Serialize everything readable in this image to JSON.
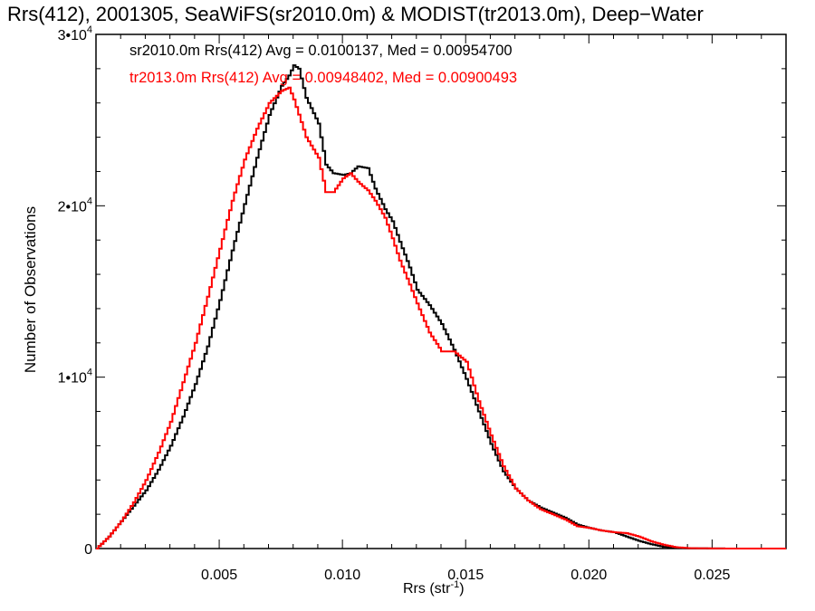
{
  "chart_data": {
    "type": "line",
    "title": "Rrs(412), 2001305, SeaWiFS(sr2010.0m) & MODIST(tr2013.0m), Deep−Water",
    "xlabel_main": "Rrs (str",
    "xlabel_sup": "-1",
    "xlabel_tail": ")",
    "ylabel": "Number of Observations",
    "xlim": [
      0.0,
      0.028
    ],
    "ylim": [
      0,
      30000
    ],
    "x_ticks": [
      {
        "value": 0.005,
        "label": "0.005"
      },
      {
        "value": 0.01,
        "label": "0.010"
      },
      {
        "value": 0.015,
        "label": "0.015"
      },
      {
        "value": 0.02,
        "label": "0.020"
      },
      {
        "value": 0.025,
        "label": "0.025"
      }
    ],
    "y_ticks": [
      {
        "value": 0,
        "base": "0",
        "exp": ""
      },
      {
        "value": 10000,
        "base": "1•10",
        "exp": "4"
      },
      {
        "value": 20000,
        "base": "2•10",
        "exp": "4"
      },
      {
        "value": 30000,
        "base": "3•10",
        "exp": "4"
      }
    ],
    "grid": false,
    "legend_placement": "top-left",
    "series": [
      {
        "name": "sr2010.0m Rrs(412)",
        "legend_text": "sr2010.0m Rrs(412) Avg = 0.0100137, Med = 0.00954700",
        "avg": 0.0100137,
        "median": 0.009547,
        "color": "#000000",
        "points": [
          [
            0.0,
            0
          ],
          [
            0.0005,
            700
          ],
          [
            0.001,
            1600
          ],
          [
            0.0015,
            2500
          ],
          [
            0.002,
            3400
          ],
          [
            0.0025,
            4600
          ],
          [
            0.003,
            6000
          ],
          [
            0.0035,
            7700
          ],
          [
            0.004,
            9600
          ],
          [
            0.0045,
            11800
          ],
          [
            0.005,
            14500
          ],
          [
            0.0055,
            17400
          ],
          [
            0.006,
            20100
          ],
          [
            0.0065,
            22800
          ],
          [
            0.007,
            25300
          ],
          [
            0.0075,
            27000
          ],
          [
            0.0078,
            27600
          ],
          [
            0.008,
            28200
          ],
          [
            0.0082,
            28000
          ],
          [
            0.0085,
            26300
          ],
          [
            0.009,
            24800
          ],
          [
            0.0093,
            22400
          ],
          [
            0.0096,
            21900
          ],
          [
            0.01,
            21800
          ],
          [
            0.0103,
            21900
          ],
          [
            0.0106,
            22300
          ],
          [
            0.011,
            22200
          ],
          [
            0.0113,
            21000
          ],
          [
            0.0117,
            19800
          ],
          [
            0.012,
            19100
          ],
          [
            0.0123,
            17900
          ],
          [
            0.0127,
            16400
          ],
          [
            0.013,
            15100
          ],
          [
            0.0135,
            14200
          ],
          [
            0.014,
            13100
          ],
          [
            0.0145,
            11600
          ],
          [
            0.015,
            9900
          ],
          [
            0.0155,
            8000
          ],
          [
            0.016,
            6100
          ],
          [
            0.0165,
            4500
          ],
          [
            0.017,
            3500
          ],
          [
            0.0175,
            2800
          ],
          [
            0.018,
            2400
          ],
          [
            0.019,
            1800
          ],
          [
            0.0195,
            1400
          ],
          [
            0.02,
            1200
          ],
          [
            0.0205,
            1050
          ],
          [
            0.021,
            950
          ],
          [
            0.0215,
            700
          ],
          [
            0.022,
            450
          ],
          [
            0.0225,
            250
          ],
          [
            0.023,
            100
          ],
          [
            0.0235,
            40
          ],
          [
            0.024,
            15
          ],
          [
            0.025,
            5
          ],
          [
            0.026,
            0
          ],
          [
            0.028,
            0
          ]
        ]
      },
      {
        "name": "tr2013.0m Rrs(412)",
        "legend_text": "tr2013.0m Rrs(412) Avg = 0.00948402, Med = 0.00900493",
        "avg": 0.00948402,
        "median": 0.00900493,
        "color": "#ff0000",
        "points": [
          [
            0.0,
            0
          ],
          [
            0.0005,
            700
          ],
          [
            0.001,
            1600
          ],
          [
            0.0015,
            2700
          ],
          [
            0.002,
            4000
          ],
          [
            0.0025,
            5600
          ],
          [
            0.003,
            7400
          ],
          [
            0.0035,
            9700
          ],
          [
            0.004,
            12000
          ],
          [
            0.0045,
            14700
          ],
          [
            0.005,
            17500
          ],
          [
            0.0055,
            20300
          ],
          [
            0.006,
            22700
          ],
          [
            0.0065,
            24500
          ],
          [
            0.007,
            26000
          ],
          [
            0.0075,
            26700
          ],
          [
            0.0078,
            26900
          ],
          [
            0.008,
            26200
          ],
          [
            0.0085,
            24000
          ],
          [
            0.009,
            22800
          ],
          [
            0.0093,
            20800
          ],
          [
            0.0096,
            20800
          ],
          [
            0.01,
            21600
          ],
          [
            0.0103,
            21900
          ],
          [
            0.0106,
            21400
          ],
          [
            0.011,
            20900
          ],
          [
            0.0113,
            20300
          ],
          [
            0.0117,
            19300
          ],
          [
            0.012,
            18100
          ],
          [
            0.0123,
            16800
          ],
          [
            0.0127,
            15400
          ],
          [
            0.013,
            14300
          ],
          [
            0.0135,
            12600
          ],
          [
            0.014,
            11500
          ],
          [
            0.0145,
            11500
          ],
          [
            0.015,
            10900
          ],
          [
            0.0155,
            8600
          ],
          [
            0.016,
            6600
          ],
          [
            0.0165,
            4800
          ],
          [
            0.017,
            3500
          ],
          [
            0.0175,
            2800
          ],
          [
            0.018,
            2300
          ],
          [
            0.019,
            1700
          ],
          [
            0.0195,
            1300
          ],
          [
            0.02,
            1200
          ],
          [
            0.0205,
            1050
          ],
          [
            0.021,
            950
          ],
          [
            0.0215,
            900
          ],
          [
            0.022,
            700
          ],
          [
            0.0225,
            420
          ],
          [
            0.023,
            220
          ],
          [
            0.0235,
            80
          ],
          [
            0.024,
            25
          ],
          [
            0.025,
            5
          ],
          [
            0.026,
            0
          ],
          [
            0.028,
            0
          ]
        ]
      }
    ]
  }
}
